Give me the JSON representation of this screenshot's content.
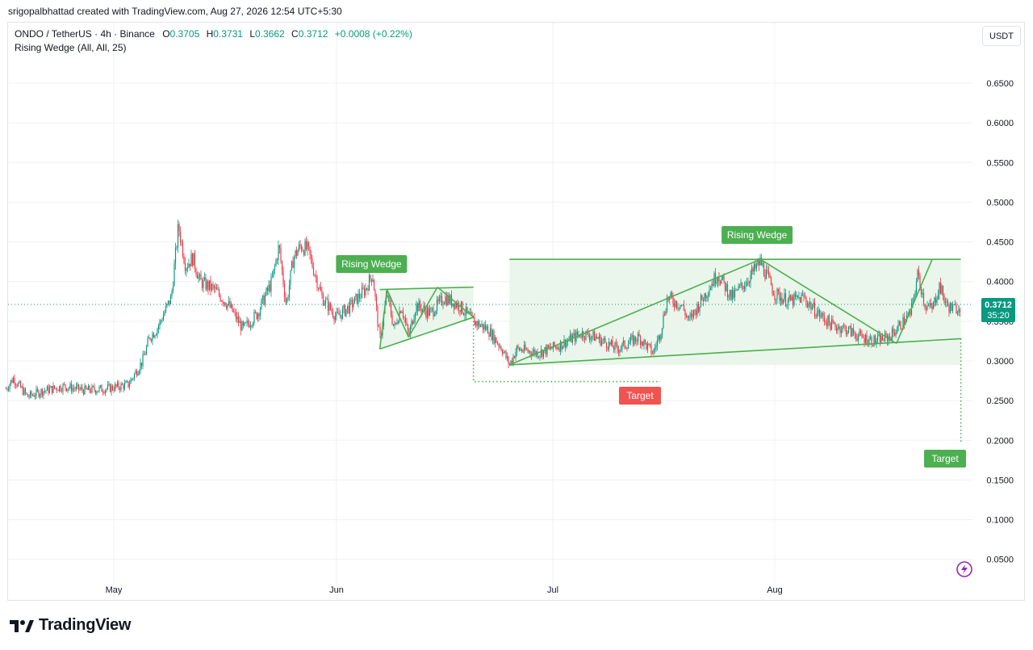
{
  "credit": "srigopalbhattad created with TradingView.com, Aug 27, 2026 12:54 UTC+5:30",
  "header": {
    "symbol": "ONDO / TetherUS · 4h · Binance",
    "o_label": "O",
    "o_value": "0.3705",
    "h_label": "H",
    "h_value": "0.3731",
    "l_label": "L",
    "l_value": "0.3662",
    "c_label": "C",
    "c_value": "0.3712",
    "change": "+0.0008 (+0.22%)"
  },
  "indicator": "Rising Wedge (All, All, 25)",
  "currency_button": "USDT",
  "brand": "TradingView",
  "colors": {
    "up": "#089981",
    "down": "#f23645",
    "pattern": "#4caf50",
    "pattern_fill": "#e8f5e9",
    "target_red": "#f05350",
    "target_green": "#4caf50",
    "grid": "#eef0f3",
    "price_label": "#089981"
  },
  "chart_data": {
    "type": "candlestick",
    "ylim": [
      0.02,
      0.69
    ],
    "yticks": [
      "0.0500",
      "0.1000",
      "0.1500",
      "0.2000",
      "0.2500",
      "0.3000",
      "0.3500",
      "0.4000",
      "0.4500",
      "0.5000",
      "0.5500",
      "0.6000",
      "0.6500"
    ],
    "xticks": [
      "May",
      "Jun",
      "Jul",
      "Aug"
    ],
    "last_price": "0.3712",
    "countdown": "35:20",
    "price_path": [
      [
        "Apr 16",
        0.265
      ],
      [
        "Apr 17",
        0.278
      ],
      [
        "Apr 19",
        0.255
      ],
      [
        "Apr 21",
        0.262
      ],
      [
        "Apr 24",
        0.268
      ],
      [
        "Apr 27",
        0.263
      ],
      [
        "Apr 30",
        0.265
      ],
      [
        "May 3",
        0.27
      ],
      [
        "May 5",
        0.3
      ],
      [
        "May 6",
        0.33
      ],
      [
        "May 7",
        0.34
      ],
      [
        "May 8",
        0.36
      ],
      [
        "May 9",
        0.38
      ],
      [
        "May 10",
        0.47
      ],
      [
        "May 11",
        0.42
      ],
      [
        "May 12",
        0.43
      ],
      [
        "May 13",
        0.4
      ],
      [
        "May 15",
        0.39
      ],
      [
        "May 17",
        0.37
      ],
      [
        "May 19",
        0.34
      ],
      [
        "May 21",
        0.36
      ],
      [
        "May 23",
        0.4
      ],
      [
        "May 24",
        0.445
      ],
      [
        "May 25",
        0.37
      ],
      [
        "May 26",
        0.43
      ],
      [
        "May 27",
        0.445
      ],
      [
        "May 28",
        0.44
      ],
      [
        "May 30",
        0.38
      ],
      [
        "Jun 1",
        0.355
      ],
      [
        "Jun 3",
        0.37
      ],
      [
        "Jun 5",
        0.39
      ],
      [
        "Jun 6",
        0.41
      ],
      [
        "Jun 7",
        0.325
      ],
      [
        "Jun 8",
        0.385
      ],
      [
        "Jun 9",
        0.34
      ],
      [
        "Jun 10",
        0.37
      ],
      [
        "Jun 11",
        0.33
      ],
      [
        "Jun 12",
        0.37
      ],
      [
        "Jun 14",
        0.36
      ],
      [
        "Jun 16",
        0.38
      ],
      [
        "Jun 18",
        0.37
      ],
      [
        "Jun 20",
        0.35
      ],
      [
        "Jun 22",
        0.34
      ],
      [
        "Jun 24",
        0.315
      ],
      [
        "Jun 25",
        0.295
      ],
      [
        "Jun 26",
        0.315
      ],
      [
        "Jun 29",
        0.31
      ],
      [
        "Jul 2",
        0.32
      ],
      [
        "Jul 5",
        0.335
      ],
      [
        "Jul 7",
        0.33
      ],
      [
        "Jul 10",
        0.315
      ],
      [
        "Jul 13",
        0.33
      ],
      [
        "Jul 15",
        0.31
      ],
      [
        "Jul 16",
        0.335
      ],
      [
        "Jul 17",
        0.38
      ],
      [
        "Jul 19",
        0.37
      ],
      [
        "Jul 20",
        0.35
      ],
      [
        "Jul 22",
        0.38
      ],
      [
        "Jul 24",
        0.41
      ],
      [
        "Jul 26",
        0.38
      ],
      [
        "Jul 28",
        0.4
      ],
      [
        "Jul 30",
        0.425
      ],
      [
        "Aug 1",
        0.385
      ],
      [
        "Aug 3",
        0.375
      ],
      [
        "Aug 5",
        0.38
      ],
      [
        "Aug 7",
        0.36
      ],
      [
        "Aug 9",
        0.345
      ],
      [
        "Aug 11",
        0.34
      ],
      [
        "Aug 13",
        0.33
      ],
      [
        "Aug 15",
        0.325
      ],
      [
        "Aug 17",
        0.33
      ],
      [
        "Aug 19",
        0.35
      ],
      [
        "Aug 20",
        0.36
      ],
      [
        "Aug 21",
        0.41
      ],
      [
        "Aug 22",
        0.37
      ],
      [
        "Aug 23",
        0.365
      ],
      [
        "Aug 24",
        0.395
      ],
      [
        "Aug 25",
        0.37
      ],
      [
        "Aug 26",
        0.365
      ],
      [
        "Aug 27",
        0.371
      ]
    ],
    "annotations": {
      "wedge_label": "Rising Wedge",
      "target_label": "Target"
    }
  }
}
